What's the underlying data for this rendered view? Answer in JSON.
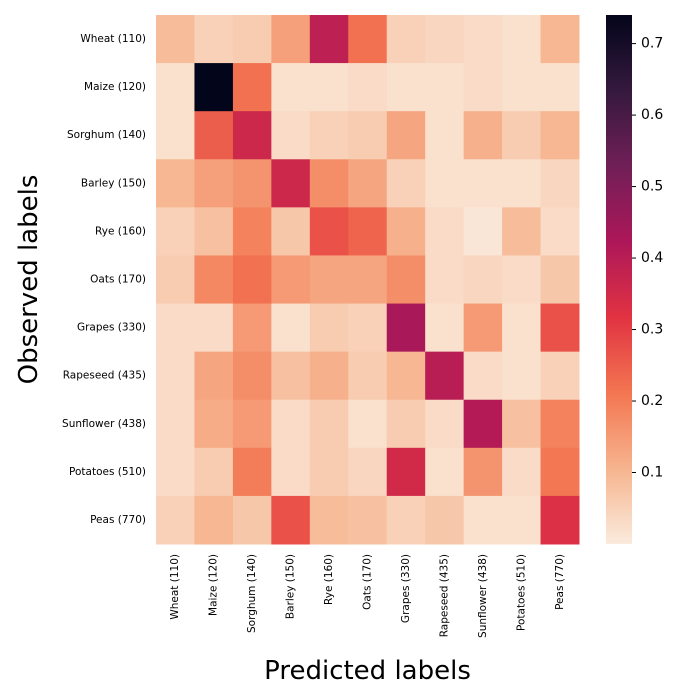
{
  "chart_data": {
    "type": "heatmap",
    "title": "",
    "xlabel": "Predicted labels",
    "ylabel": "Observed labels",
    "row_labels": [
      "Wheat (110)",
      "Maize (120)",
      "Sorghum (140)",
      "Barley (150)",
      "Rye (160)",
      "Oats (170)",
      "Grapes (330)",
      "Rapeseed (435)",
      "Sunflower (438)",
      "Potatoes (510)",
      "Peas (770)"
    ],
    "col_labels": [
      "Wheat (110)",
      "Maize (120)",
      "Sorghum (140)",
      "Barley (150)",
      "Rye (160)",
      "Oats (170)",
      "Grapes (330)",
      "Rapeseed (435)",
      "Sunflower (438)",
      "Potatoes (510)",
      "Peas (770)"
    ],
    "values": [
      [
        0.09,
        0.05,
        0.06,
        0.14,
        0.39,
        0.22,
        0.05,
        0.04,
        0.03,
        0.02,
        0.1
      ],
      [
        0.02,
        0.74,
        0.22,
        0.02,
        0.02,
        0.03,
        0.02,
        0.02,
        0.03,
        0.02,
        0.02
      ],
      [
        0.02,
        0.25,
        0.36,
        0.03,
        0.05,
        0.06,
        0.13,
        0.02,
        0.11,
        0.06,
        0.1
      ],
      [
        0.1,
        0.14,
        0.16,
        0.36,
        0.17,
        0.13,
        0.05,
        0.02,
        0.02,
        0.02,
        0.04
      ],
      [
        0.05,
        0.08,
        0.19,
        0.07,
        0.27,
        0.24,
        0.11,
        0.03,
        0.01,
        0.09,
        0.03
      ],
      [
        0.06,
        0.18,
        0.22,
        0.15,
        0.13,
        0.13,
        0.17,
        0.03,
        0.04,
        0.03,
        0.07
      ],
      [
        0.03,
        0.03,
        0.15,
        0.02,
        0.06,
        0.05,
        0.43,
        0.02,
        0.15,
        0.02,
        0.27
      ],
      [
        0.03,
        0.13,
        0.17,
        0.08,
        0.11,
        0.06,
        0.1,
        0.4,
        0.03,
        0.02,
        0.05
      ],
      [
        0.03,
        0.12,
        0.15,
        0.03,
        0.06,
        0.02,
        0.06,
        0.03,
        0.41,
        0.08,
        0.19
      ],
      [
        0.03,
        0.06,
        0.2,
        0.03,
        0.06,
        0.04,
        0.35,
        0.02,
        0.16,
        0.03,
        0.21
      ],
      [
        0.05,
        0.1,
        0.07,
        0.27,
        0.09,
        0.08,
        0.05,
        0.07,
        0.02,
        0.02,
        0.33
      ]
    ],
    "colorbar": {
      "min": 0.0,
      "max": 0.74,
      "ticks": [
        0.1,
        0.2,
        0.3,
        0.4,
        0.5,
        0.6,
        0.7
      ],
      "tick_labels": [
        "0.1",
        "0.2",
        "0.3",
        "0.4",
        "0.5",
        "0.6",
        "0.7"
      ]
    },
    "colormap": [
      "#faebdd",
      "#f6b48e",
      "#f37651",
      "#e13342",
      "#ad1759",
      "#701f57",
      "#35193e",
      "#03051a"
    ],
    "grid": false
  }
}
